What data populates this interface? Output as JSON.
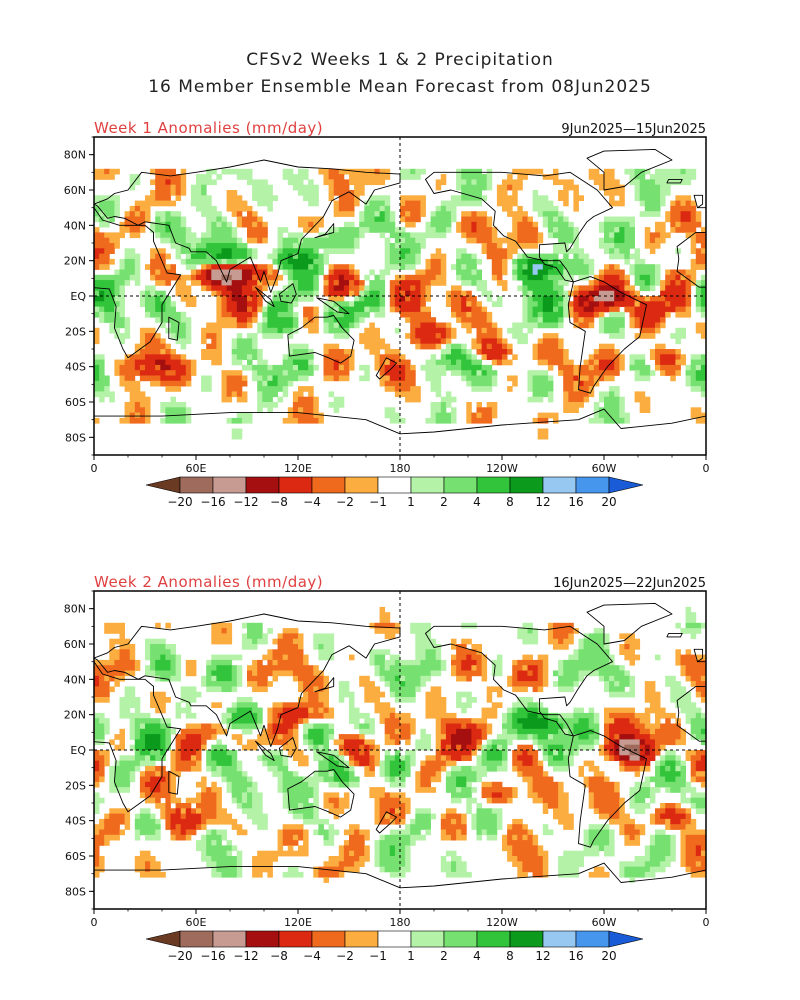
{
  "title_line1": "CFSv2 Weeks 1 & 2 Precipitation",
  "title_line2": "16 Member Ensemble Mean Forecast from 08Jun2025",
  "panels": [
    {
      "label": "Week 1 Anomalies (mm/day)",
      "dates": "9Jun2025—15Jun2025"
    },
    {
      "label": "Week 2 Anomalies (mm/day)",
      "dates": "16Jun2025—22Jun2025"
    }
  ],
  "lat_ticks": [
    "80N",
    "60N",
    "40N",
    "20N",
    "EQ",
    "20S",
    "40S",
    "60S",
    "80S"
  ],
  "lon_ticks": [
    "0",
    "60E",
    "120E",
    "180",
    "120W",
    "60W",
    "0"
  ],
  "colorbar": {
    "labels": [
      "−20",
      "−16",
      "−12",
      "−8",
      "−4",
      "−2",
      "−1",
      "1",
      "2",
      "4",
      "8",
      "12",
      "16",
      "20"
    ],
    "colors": [
      "#6b3a22",
      "#9e6b5c",
      "#c79b91",
      "#a50f0f",
      "#dc2a12",
      "#f06a1e",
      "#fbad40",
      "#ffffff",
      "#b4f2a8",
      "#76e070",
      "#32c43a",
      "#0b9a1c",
      "#96c8f2",
      "#4696ee",
      "#1a5cd8"
    ]
  },
  "chart_data": {
    "type": "map",
    "variable": "Precipitation anomaly",
    "units": "mm/day",
    "projection": "equirectangular",
    "lon_range": [
      0,
      360
    ],
    "lat_range": [
      -90,
      90
    ],
    "contour_levels": [
      -20,
      -16,
      -12,
      -8,
      -4,
      -2,
      -1,
      1,
      2,
      4,
      8,
      12,
      16,
      20
    ],
    "panels": [
      {
        "label": "Week 1 Anomalies (mm/day)",
        "dates": "9Jun2025—15Jun2025",
        "features": [
          {
            "lon": 150,
            "lat": 5,
            "sign": "dry",
            "amp": 9
          },
          {
            "lon": 120,
            "lat": 20,
            "sign": "wet",
            "amp": 11
          },
          {
            "lon": 78,
            "lat": 22,
            "sign": "wet",
            "amp": 10
          },
          {
            "lon": 72,
            "lat": 12,
            "sign": "dry",
            "amp": 12
          },
          {
            "lon": 88,
            "lat": 14,
            "sign": "dry",
            "amp": 9
          },
          {
            "lon": 262,
            "lat": 16,
            "sign": "wet",
            "amp": 12
          },
          {
            "lon": 300,
            "lat": -2,
            "sign": "dry",
            "amp": 12
          },
          {
            "lon": 200,
            "lat": -22,
            "sign": "dry",
            "amp": 6
          },
          {
            "lon": 234,
            "lat": -32,
            "sign": "dry",
            "amp": 7
          },
          {
            "lon": 215,
            "lat": -35,
            "sign": "wet",
            "amp": 4
          },
          {
            "lon": 112,
            "lat": -15,
            "sign": "wet",
            "amp": 5
          },
          {
            "lon": 130,
            "lat": 32,
            "sign": "wet",
            "amp": 6
          },
          {
            "lon": 35,
            "lat": -40,
            "sign": "dry",
            "amp": 6
          },
          {
            "lon": 335,
            "lat": -35,
            "sign": "dry",
            "amp": 5
          }
        ]
      },
      {
        "label": "Week 2 Anomalies (mm/day)",
        "dates": "16Jun2025—22Jun2025",
        "features": [
          {
            "lon": 150,
            "lat": 3,
            "sign": "dry",
            "amp": 8
          },
          {
            "lon": 125,
            "lat": 20,
            "sign": "dry",
            "amp": 7
          },
          {
            "lon": 80,
            "lat": 18,
            "sign": "wet",
            "amp": 7
          },
          {
            "lon": 265,
            "lat": 15,
            "sign": "wet",
            "amp": 9
          },
          {
            "lon": 315,
            "lat": 0,
            "sign": "dry",
            "amp": 12
          },
          {
            "lon": 230,
            "lat": 8,
            "sign": "dry",
            "amp": 5
          },
          {
            "lon": 95,
            "lat": -3,
            "sign": "wet",
            "amp": 5
          },
          {
            "lon": 150,
            "lat": -15,
            "sign": "wet",
            "amp": 7
          },
          {
            "lon": 240,
            "lat": -25,
            "sign": "dry",
            "amp": 5
          },
          {
            "lon": 345,
            "lat": -38,
            "sign": "dry",
            "amp": 6
          },
          {
            "lon": 60,
            "lat": -40,
            "sign": "dry",
            "amp": 4
          }
        ]
      }
    ]
  }
}
